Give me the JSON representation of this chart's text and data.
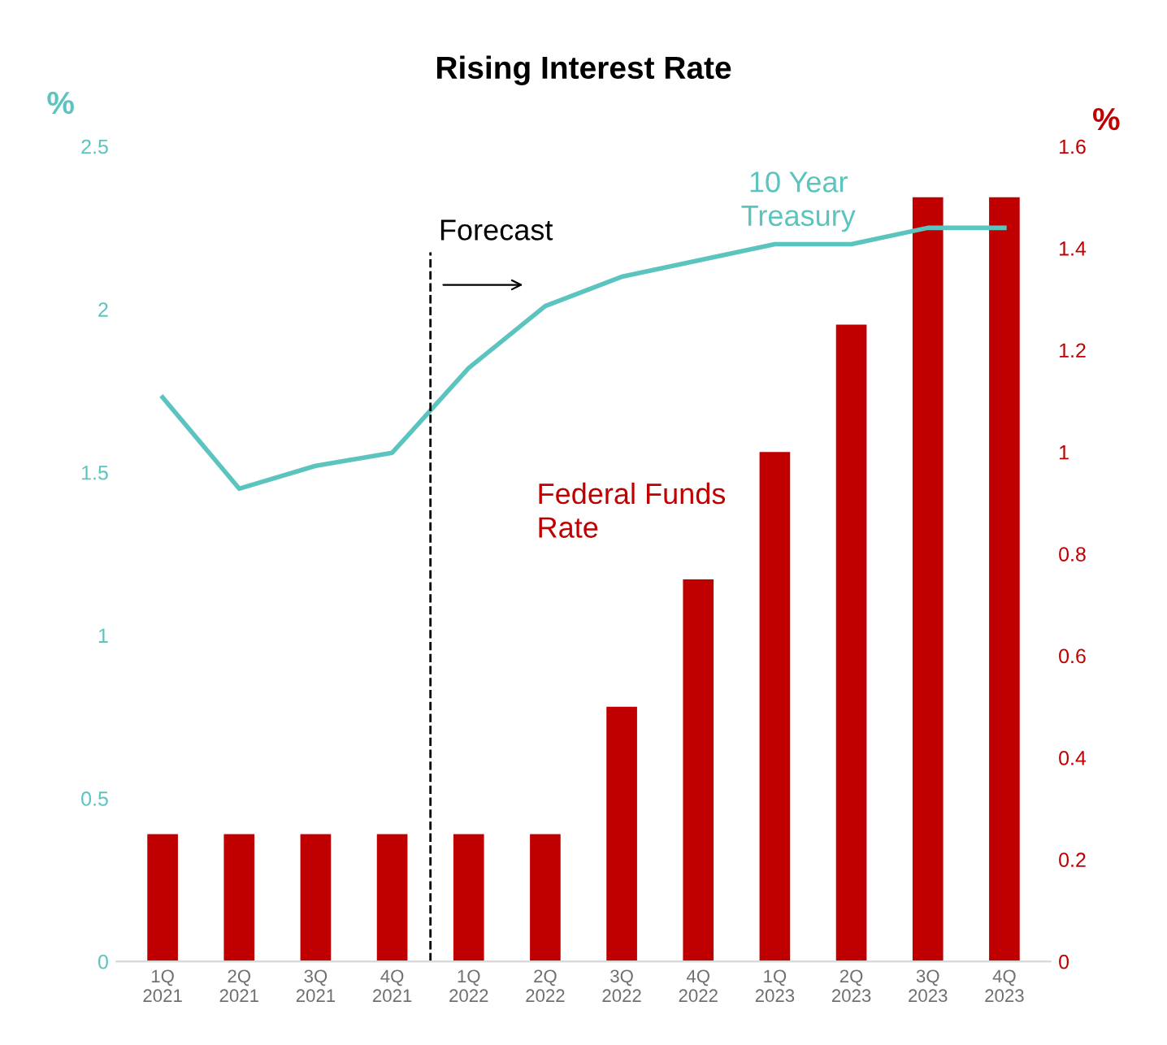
{
  "chart_data": {
    "type": "bar",
    "title": "Rising Interest Rate",
    "ylabel": "%",
    "y2label": "%",
    "categories": [
      "1Q\n2021",
      "2Q\n2021",
      "3Q\n2021",
      "4Q\n2021",
      "1Q\n2022",
      "2Q\n2022",
      "3Q\n2022",
      "4Q\n2022",
      "1Q\n2023",
      "2Q\n2023",
      "3Q\n2023",
      "4Q\n2023"
    ],
    "series": [
      {
        "name": "10 Year Treasury",
        "type": "line",
        "axis": "y",
        "color": "#5bc4bf",
        "values": [
          1.73,
          1.45,
          1.52,
          1.56,
          1.82,
          2.01,
          2.1,
          2.15,
          2.2,
          2.2,
          2.25,
          2.25
        ]
      },
      {
        "name": "Federal Funds Rate",
        "axis": "y2",
        "color": "#c00000",
        "values": [
          0.25,
          0.25,
          0.25,
          0.25,
          0.25,
          0.25,
          0.5,
          0.75,
          1,
          1.25,
          1.5,
          1.5
        ]
      }
    ],
    "ylim": [
      0,
      2.5
    ],
    "yticks": [
      0,
      0.5,
      1,
      1.5,
      2,
      2.5
    ],
    "y2lim": [
      0,
      1.6
    ],
    "y2ticks": [
      0,
      0.2,
      0.4,
      0.6,
      0.8,
      1,
      1.2,
      1.4,
      1.6
    ],
    "annotations": [
      "Forecast"
    ],
    "grid": false,
    "legend": false
  }
}
